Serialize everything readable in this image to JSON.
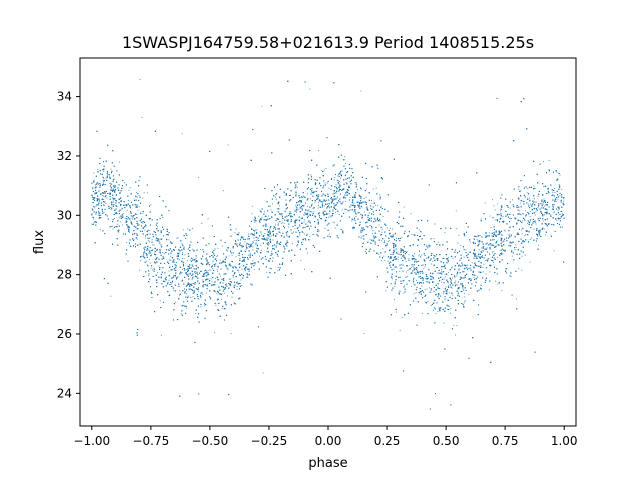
{
  "chart_data": {
    "type": "scatter",
    "title": "1SWASPJ164759.58+021613.9 Period 1408515.25s",
    "xlabel": "phase",
    "ylabel": "flux",
    "xlim": [
      -1.05,
      1.05
    ],
    "ylim": [
      22.9,
      35.3
    ],
    "xticks": [
      -1.0,
      -0.75,
      -0.5,
      -0.25,
      0.0,
      0.25,
      0.5,
      0.75,
      1.0
    ],
    "xtick_labels": [
      "−1.00",
      "−0.75",
      "−0.50",
      "−0.25",
      "0.00",
      "0.25",
      "0.50",
      "0.75",
      "1.00"
    ],
    "yticks": [
      24,
      26,
      28,
      30,
      32,
      34
    ],
    "ytick_labels": [
      "24",
      "26",
      "28",
      "30",
      "32",
      "34"
    ],
    "grid": false,
    "point_color": "#1f77b4",
    "series": [
      {
        "x": [
          -1.0,
          -0.95,
          -0.9,
          -0.85,
          -0.8,
          -0.75,
          -0.7,
          -0.65,
          -0.6,
          -0.55,
          -0.5,
          -0.45,
          -0.4,
          -0.35,
          -0.3,
          -0.25,
          -0.2,
          -0.15,
          -0.1,
          -0.05,
          0.0,
          0.05,
          0.1,
          0.15,
          0.2,
          0.25,
          0.3,
          0.35,
          0.4,
          0.45,
          0.5,
          0.55,
          0.6,
          0.65,
          0.7,
          0.75,
          0.8,
          0.85,
          0.9,
          0.95,
          1.0
        ],
        "y": [
          30.3,
          30.8,
          30.5,
          29.9,
          29.8,
          29.0,
          28.6,
          28.3,
          28.1,
          27.9,
          28.0,
          27.8,
          28.2,
          28.7,
          29.1,
          29.3,
          29.6,
          29.9,
          30.1,
          30.4,
          30.3,
          30.8,
          30.5,
          29.9,
          29.8,
          29.0,
          28.6,
          28.3,
          28.1,
          27.9,
          28.0,
          27.8,
          28.2,
          28.7,
          29.1,
          29.3,
          29.6,
          29.9,
          30.1,
          30.4,
          30.3
        ],
        "spread": [
          0.5,
          0.6,
          0.6,
          0.6,
          0.7,
          0.8,
          0.8,
          0.7,
          0.7,
          0.7,
          0.7,
          0.7,
          0.7,
          0.6,
          0.6,
          0.7,
          0.7,
          0.6,
          0.6,
          0.6,
          0.5,
          0.6,
          0.6,
          0.6,
          0.7,
          0.8,
          0.8,
          0.7,
          0.7,
          0.7,
          0.7,
          0.7,
          0.7,
          0.6,
          0.6,
          0.7,
          0.7,
          0.6,
          0.6,
          0.6,
          0.5
        ],
        "n_points": 12000
      }
    ]
  }
}
